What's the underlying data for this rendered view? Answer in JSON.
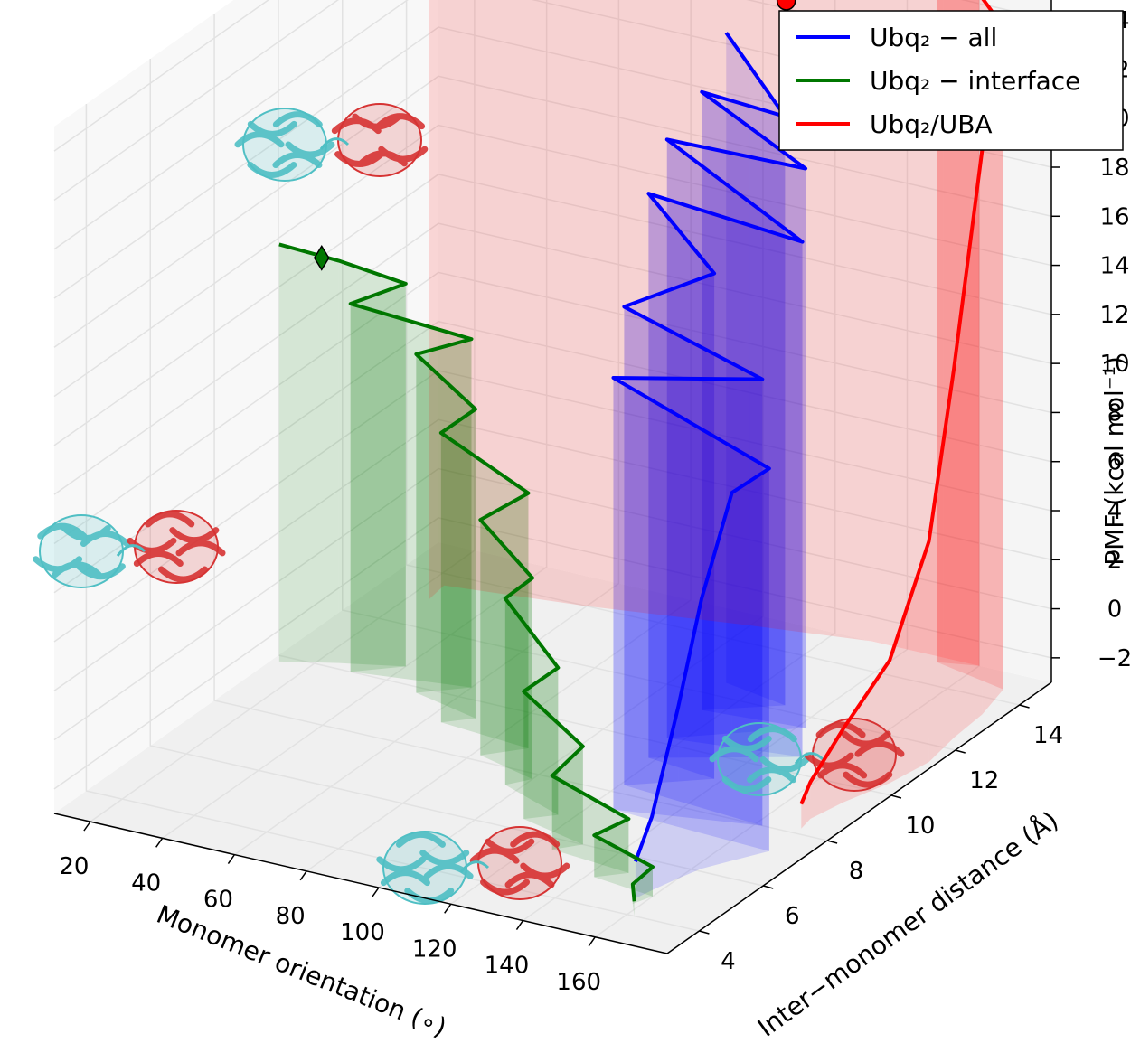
{
  "chart_data": {
    "type": "line",
    "projection": "3d",
    "xlabel": "Monomer orientation (∘)",
    "ylabel": "Inter−monomer distance (Å)",
    "zlabel": "PMF (kcal mol⁻¹)",
    "x_ticks": [
      "20",
      "40",
      "60",
      "80",
      "100",
      "120",
      "140",
      "160"
    ],
    "y_ticks": [
      "4",
      "6",
      "8",
      "10",
      "12",
      "14"
    ],
    "z_ticks": [
      "−2",
      "0",
      "2",
      "4",
      "6",
      "8",
      "10",
      "12",
      "14",
      "16",
      "18",
      "20",
      "22",
      "24"
    ],
    "xlim": [
      10,
      180
    ],
    "ylim": [
      3,
      15
    ],
    "zlim": [
      -3,
      25
    ],
    "grid": true,
    "legend_position": "top-right",
    "series": [
      {
        "name": "Ubq₂ − all",
        "color": "#0000ff",
        "fill": true,
        "points": [
          [
            112,
            12.5,
            23.5
          ],
          [
            131,
            12.2,
            21.0
          ],
          [
            115,
            11.4,
            22.2
          ],
          [
            142,
            11.6,
            19.8
          ],
          [
            116,
            10.2,
            21.4
          ],
          [
            150,
            10.6,
            18.0
          ],
          [
            118,
            9.4,
            20.0
          ],
          [
            138,
            9.2,
            17.6
          ],
          [
            121,
            8.3,
            16.5
          ],
          [
            162,
            8.0,
            15.2
          ],
          [
            126,
            7.4,
            14.6
          ],
          [
            171,
            7.2,
            12.6
          ],
          [
            166,
            6.6,
            12.0
          ],
          [
            162,
            6.1,
            8.0
          ],
          [
            160,
            5.6,
            4.0
          ],
          [
            158,
            5.0,
            0.0
          ],
          [
            157,
            4.6,
            -1.5
          ]
        ]
      },
      {
        "name": "Ubq₂ − interface",
        "color": "#007700",
        "fill": true,
        "points": [
          [
            12,
            9.8,
            14.0
          ],
          [
            25,
            10.2,
            13.4
          ],
          [
            40,
            10.6,
            12.6
          ],
          [
            30,
            10.0,
            12.0
          ],
          [
            60,
            10.4,
            11.2
          ],
          [
            50,
            9.8,
            10.8
          ],
          [
            70,
            9.4,
            9.6
          ],
          [
            64,
            9.0,
            8.8
          ],
          [
            90,
            8.8,
            7.4
          ],
          [
            82,
            8.2,
            6.6
          ],
          [
            100,
            7.8,
            5.2
          ],
          [
            96,
            7.4,
            4.6
          ],
          [
            116,
            6.8,
            3.0
          ],
          [
            110,
            6.4,
            2.2
          ],
          [
            130,
            6.0,
            1.0
          ],
          [
            125,
            5.6,
            0.0
          ],
          [
            148,
            5.4,
            -0.8
          ],
          [
            142,
            5.0,
            -1.3
          ],
          [
            160,
            4.8,
            -1.8
          ],
          [
            158,
            4.4,
            -2.2
          ],
          [
            162,
            4.0,
            -2.4
          ]
        ]
      },
      {
        "name": "Ubq₂/UBA",
        "color": "#ff0000",
        "fill": true,
        "points": [
          [
            25,
            13.0,
            22.4
          ],
          [
            24,
            13.6,
            21.5
          ],
          [
            60,
            14.0,
            22.3
          ],
          [
            100,
            14.6,
            22.8
          ],
          [
            130,
            15.0,
            23.8
          ],
          [
            150,
            15.0,
            25.5
          ],
          [
            160,
            15.0,
            26.2
          ],
          [
            150,
            14.8,
            26.6
          ],
          [
            172,
            14.4,
            24.0
          ],
          [
            175,
            13.4,
            20.0
          ],
          [
            176,
            12.4,
            12.0
          ],
          [
            178,
            11.4,
            6.0
          ],
          [
            176,
            10.4,
            2.0
          ],
          [
            172,
            9.4,
            0.0
          ],
          [
            170,
            8.6,
            -1.5
          ],
          [
            171,
            8.2,
            -2.0
          ]
        ]
      }
    ],
    "markers": [
      {
        "series": "Ubq₂/UBA",
        "shape": "circle",
        "color": "#ff0000",
        "point": [
          110,
          14.6,
          22.8
        ]
      },
      {
        "series": "Ubq₂ − interface",
        "shape": "diamond",
        "color": "#007700",
        "point": [
          22,
          10.0,
          13.6
        ]
      }
    ],
    "images": [
      "protein-structure-icon",
      "protein-structure-icon",
      "protein-structure-icon",
      "protein-structure-icon"
    ],
    "colors": {
      "cyan_monomer": "#4fbfc4",
      "red_monomer": "#d63333",
      "pane": "#f0f0f0",
      "grid": "#e2e2e2"
    }
  }
}
